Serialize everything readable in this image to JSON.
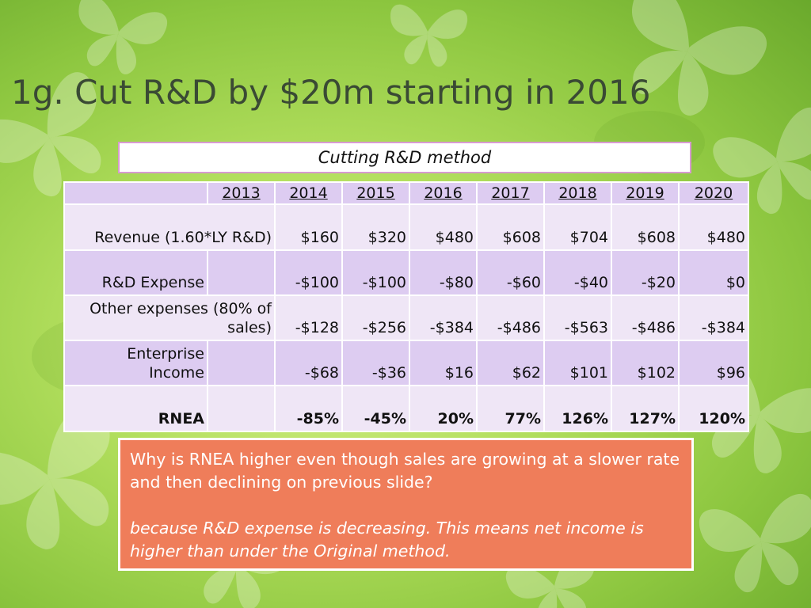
{
  "slide": {
    "title": "1g. Cut R&D by $20m starting in 2016",
    "method_label": "Cutting R&D method"
  },
  "table": {
    "years": [
      "2013",
      "2014",
      "2015",
      "2016",
      "2017",
      "2018",
      "2019",
      "2020"
    ],
    "rows": [
      {
        "label": "Revenue (1.60*LY R&D)",
        "values": [
          "",
          "$160",
          "$320",
          "$480",
          "$608",
          "$704",
          "$608",
          "$480"
        ],
        "bold": false
      },
      {
        "label": "R&D Expense",
        "values": [
          "",
          "-$100",
          "-$100",
          "-$80",
          "-$60",
          "-$40",
          "-$20",
          "$0"
        ],
        "bold": false
      },
      {
        "label": "Other expenses (80% of sales)",
        "values": [
          "",
          "-$128",
          "-$256",
          "-$384",
          "-$486",
          "-$563",
          "-$486",
          "-$384"
        ],
        "bold": false
      },
      {
        "label": "Enterprise Income",
        "values": [
          "",
          "-$68",
          "-$36",
          "$16",
          "$62",
          "$101",
          "$102",
          "$96"
        ],
        "bold": false
      },
      {
        "label": "RNEA",
        "values": [
          "",
          "-85%",
          "-45%",
          "20%",
          "77%",
          "126%",
          "127%",
          "120%"
        ],
        "bold": true
      }
    ]
  },
  "note": {
    "question": "Why is RNEA higher even though sales are growing at a slower rate and then declining on previous slide?",
    "answer": "because R&D expense is decreasing. This means net income is higher than under the Original method."
  },
  "colors": {
    "background": "#8cc63f",
    "table_light": "#efe6f6",
    "table_dark": "#ddccf1",
    "note_fill": "#ef7d5a",
    "method_border": "#d79ad0"
  }
}
